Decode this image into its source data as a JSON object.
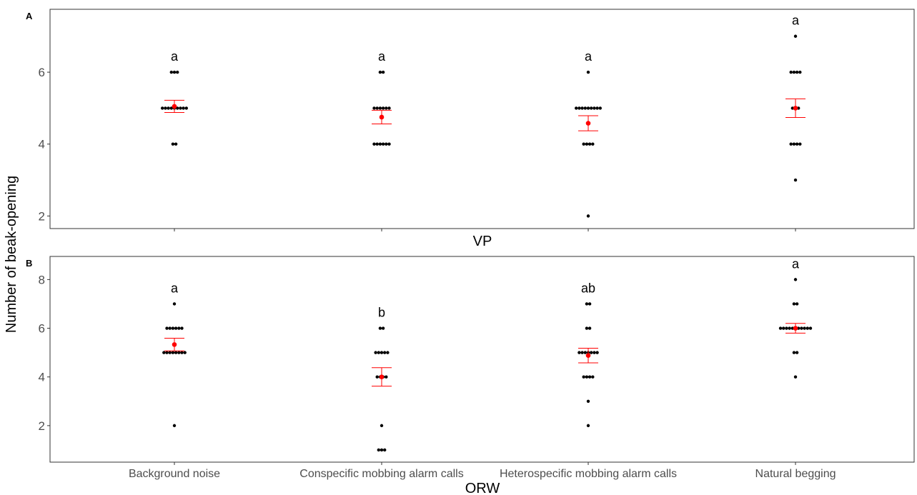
{
  "chart_data": [
    {
      "type": "scatter",
      "panel_label": "A",
      "xlabel": "VP",
      "ylabel": "Number of beak-opening",
      "categories": [
        "Background noise",
        "Conspecific mobbing alarm calls",
        "Heterospecific mobbing alarm calls",
        "Natural begging"
      ],
      "yticks": [
        2,
        4,
        6
      ],
      "ylim": [
        1.65,
        7.75
      ],
      "grid": false,
      "points": [
        [
          4,
          4,
          5,
          5,
          5,
          5,
          5,
          5,
          5,
          5,
          5,
          6,
          6,
          6
        ],
        [
          4,
          4,
          4,
          4,
          4,
          4,
          5,
          5,
          5,
          5,
          5,
          5,
          6,
          6
        ],
        [
          2,
          4,
          4,
          4,
          4,
          5,
          5,
          5,
          5,
          5,
          5,
          5,
          5,
          5,
          6
        ],
        [
          3,
          4,
          4,
          4,
          4,
          5,
          5,
          5,
          6,
          6,
          6,
          6,
          7
        ]
      ],
      "means": [
        5.05,
        4.75,
        4.58,
        5.0
      ],
      "se_low": [
        4.88,
        4.56,
        4.37,
        4.74
      ],
      "se_high": [
        5.22,
        4.94,
        4.79,
        5.26
      ],
      "letters": [
        "a",
        "a",
        "a",
        "a"
      ]
    },
    {
      "type": "scatter",
      "panel_label": "B",
      "xlabel": "ORW",
      "ylabel": "Number of beak-opening",
      "categories": [
        "Background noise",
        "Conspecific mobbing alarm calls",
        "Heterospecific mobbing alarm calls",
        "Natural begging"
      ],
      "yticks": [
        2,
        4,
        6,
        8
      ],
      "ylim": [
        0.5,
        8.95
      ],
      "grid": false,
      "points": [
        [
          2,
          5,
          5,
          5,
          5,
          5,
          5,
          5,
          5,
          6,
          6,
          6,
          6,
          6,
          6,
          7
        ],
        [
          1,
          1,
          1,
          2,
          4,
          4,
          4,
          4,
          5,
          5,
          5,
          5,
          5,
          6,
          6
        ],
        [
          2,
          3,
          4,
          4,
          4,
          4,
          5,
          5,
          5,
          5,
          5,
          5,
          5,
          6,
          6,
          7,
          7
        ],
        [
          4,
          5,
          5,
          6,
          6,
          6,
          6,
          6,
          6,
          6,
          6,
          6,
          6,
          6,
          7,
          7,
          8
        ]
      ],
      "means": [
        5.33,
        4.0,
        4.88,
        6.0
      ],
      "se_low": [
        5.07,
        3.62,
        4.58,
        5.8
      ],
      "se_high": [
        5.59,
        4.38,
        5.18,
        6.2
      ],
      "letters": [
        "a",
        "b",
        "ab",
        "a"
      ]
    }
  ],
  "colors": {
    "points": "#000000",
    "mean": "#ff0000",
    "errorbar": "#ff0000",
    "axis": "#333333",
    "tick_label": "#4d4d4d",
    "text": "#000000"
  }
}
